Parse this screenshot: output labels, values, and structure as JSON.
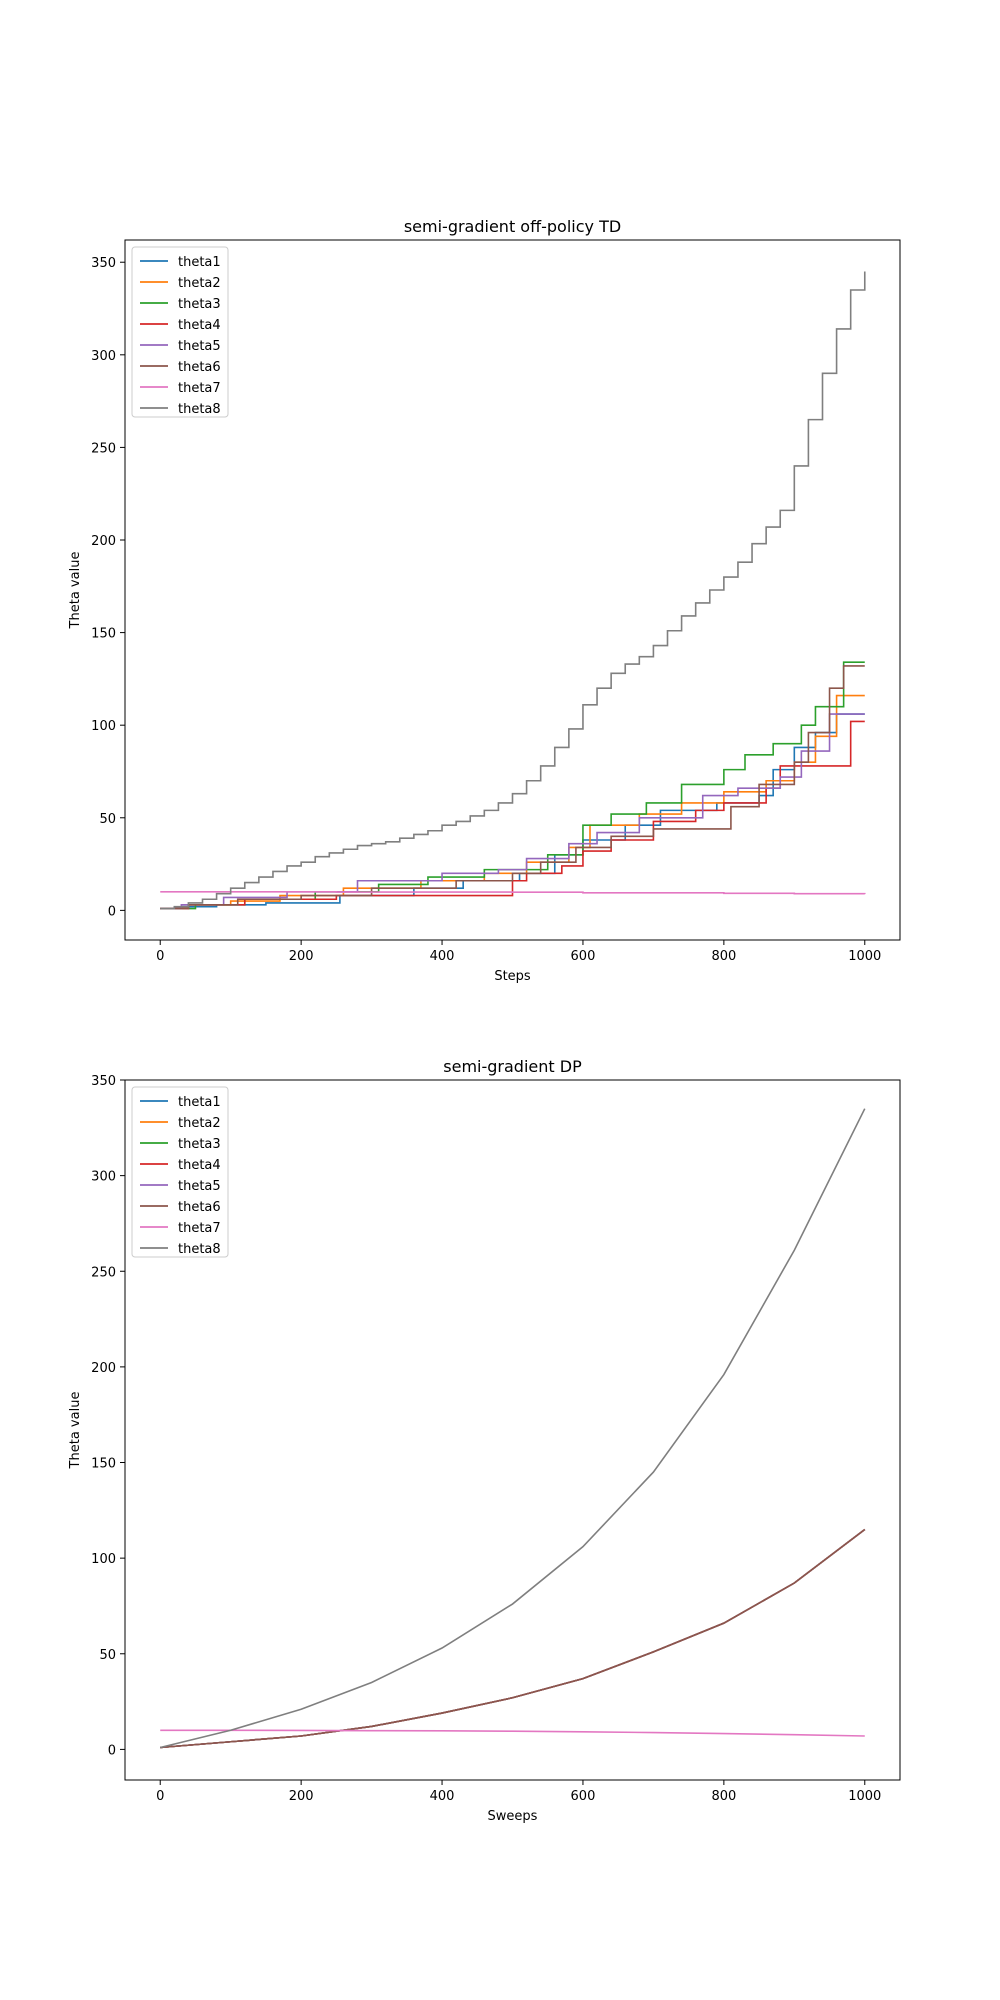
{
  "chart_data": [
    {
      "type": "line",
      "title": "semi-gradient off-policy TD",
      "xlabel": "Steps",
      "ylabel": "Theta value",
      "xlim": [
        -50,
        1050
      ],
      "ylim": [
        -16,
        362
      ],
      "xticks": [
        0,
        200,
        400,
        600,
        800,
        1000
      ],
      "yticks": [
        0,
        50,
        100,
        150,
        200,
        250,
        300,
        350
      ],
      "grid": false,
      "legend": "top-left",
      "step": true,
      "series": [
        {
          "name": "theta1",
          "color": "#1f77b4",
          "x": [
            0,
            30,
            80,
            150,
            255,
            360,
            430,
            510,
            560,
            600,
            660,
            710,
            790,
            850,
            870,
            900,
            930,
            960,
            1000
          ],
          "y": [
            1,
            2,
            3,
            4,
            8,
            12,
            16,
            20,
            30,
            38,
            46,
            54,
            58,
            62,
            76,
            88,
            96,
            106,
            106
          ]
        },
        {
          "name": "theta2",
          "color": "#ff7f0e",
          "x": [
            0,
            40,
            100,
            170,
            260,
            370,
            460,
            520,
            580,
            610,
            680,
            740,
            800,
            860,
            900,
            930,
            960,
            1000
          ],
          "y": [
            1,
            3,
            5,
            8,
            12,
            16,
            20,
            26,
            34,
            46,
            52,
            58,
            64,
            70,
            80,
            94,
            116,
            116
          ]
        },
        {
          "name": "theta3",
          "color": "#2ca02c",
          "x": [
            0,
            50,
            120,
            220,
            310,
            380,
            460,
            550,
            600,
            640,
            690,
            740,
            800,
            830,
            870,
            910,
            930,
            970,
            1000
          ],
          "y": [
            1,
            3,
            6,
            10,
            14,
            18,
            22,
            30,
            46,
            52,
            58,
            68,
            76,
            84,
            90,
            100,
            110,
            134,
            134
          ]
        },
        {
          "name": "theta4",
          "color": "#d62728",
          "x": [
            0,
            40,
            120,
            250,
            400,
            500,
            520,
            570,
            600,
            640,
            700,
            760,
            800,
            860,
            880,
            980,
            1000
          ],
          "y": [
            1,
            3,
            6,
            8,
            8,
            16,
            20,
            24,
            32,
            38,
            48,
            54,
            58,
            66,
            78,
            102,
            102
          ]
        },
        {
          "name": "theta5",
          "color": "#9467bd",
          "x": [
            0,
            30,
            90,
            180,
            280,
            400,
            480,
            520,
            580,
            620,
            680,
            770,
            820,
            880,
            910,
            950,
            1000
          ],
          "y": [
            1,
            3,
            7,
            10,
            16,
            20,
            22,
            28,
            36,
            42,
            50,
            62,
            66,
            72,
            86,
            106,
            106
          ]
        },
        {
          "name": "theta6",
          "color": "#8c564b",
          "x": [
            0,
            40,
            110,
            200,
            300,
            420,
            500,
            540,
            590,
            640,
            700,
            810,
            850,
            900,
            920,
            950,
            970,
            1000
          ],
          "y": [
            1,
            3,
            6,
            8,
            12,
            16,
            20,
            26,
            34,
            40,
            44,
            56,
            68,
            80,
            96,
            120,
            132,
            132
          ]
        },
        {
          "name": "theta7",
          "color": "#e377c2",
          "x": [
            0,
            250,
            500,
            600,
            800,
            900,
            1000
          ],
          "y": [
            10,
            9.9,
            9.8,
            9.5,
            9.2,
            9.0,
            8.8
          ]
        },
        {
          "name": "theta8",
          "color": "#7f7f7f",
          "x": [
            0,
            20,
            40,
            60,
            80,
            100,
            120,
            140,
            160,
            180,
            200,
            220,
            240,
            260,
            280,
            300,
            320,
            340,
            360,
            380,
            400,
            420,
            440,
            460,
            480,
            500,
            520,
            540,
            560,
            580,
            600,
            620,
            640,
            660,
            680,
            700,
            720,
            740,
            760,
            780,
            800,
            820,
            840,
            860,
            880,
            900,
            920,
            940,
            960,
            980,
            1000
          ],
          "y": [
            1,
            2,
            4,
            6,
            9,
            12,
            15,
            18,
            21,
            24,
            26,
            29,
            31,
            33,
            35,
            36,
            37,
            39,
            41,
            43,
            46,
            48,
            51,
            54,
            58,
            63,
            70,
            78,
            88,
            98,
            111,
            120,
            128,
            133,
            137,
            143,
            151,
            159,
            166,
            173,
            180,
            188,
            198,
            207,
            216,
            240,
            265,
            290,
            314,
            335,
            345
          ]
        }
      ]
    },
    {
      "type": "line",
      "title": "semi-gradient DP",
      "xlabel": "Sweeps",
      "ylabel": "Theta value",
      "xlim": [
        -50,
        1050
      ],
      "ylim": [
        -16,
        350
      ],
      "xticks": [
        0,
        200,
        400,
        600,
        800,
        1000
      ],
      "yticks": [
        0,
        50,
        100,
        150,
        200,
        250,
        300,
        350
      ],
      "grid": false,
      "legend": "top-left",
      "step": false,
      "series": [
        {
          "name": "theta1",
          "color": "#1f77b4",
          "x": [
            0,
            100,
            200,
            300,
            400,
            500,
            600,
            700,
            800,
            900,
            1000
          ],
          "y": [
            1,
            4,
            7,
            12,
            19,
            27,
            37,
            51,
            66,
            87,
            115
          ]
        },
        {
          "name": "theta2",
          "color": "#ff7f0e",
          "x": [
            0,
            100,
            200,
            300,
            400,
            500,
            600,
            700,
            800,
            900,
            1000
          ],
          "y": [
            1,
            4,
            7,
            12,
            19,
            27,
            37,
            51,
            66,
            87,
            115
          ]
        },
        {
          "name": "theta3",
          "color": "#2ca02c",
          "x": [
            0,
            100,
            200,
            300,
            400,
            500,
            600,
            700,
            800,
            900,
            1000
          ],
          "y": [
            1,
            4,
            7,
            12,
            19,
            27,
            37,
            51,
            66,
            87,
            115
          ]
        },
        {
          "name": "theta4",
          "color": "#d62728",
          "x": [
            0,
            100,
            200,
            300,
            400,
            500,
            600,
            700,
            800,
            900,
            1000
          ],
          "y": [
            1,
            4,
            7,
            12,
            19,
            27,
            37,
            51,
            66,
            87,
            115
          ]
        },
        {
          "name": "theta5",
          "color": "#9467bd",
          "x": [
            0,
            100,
            200,
            300,
            400,
            500,
            600,
            700,
            800,
            900,
            1000
          ],
          "y": [
            1,
            4,
            7,
            12,
            19,
            27,
            37,
            51,
            66,
            87,
            115
          ]
        },
        {
          "name": "theta6",
          "color": "#8c564b",
          "x": [
            0,
            100,
            200,
            300,
            400,
            500,
            600,
            700,
            800,
            900,
            1000
          ],
          "y": [
            1,
            4,
            7,
            12,
            19,
            27,
            37,
            51,
            66,
            87,
            115
          ]
        },
        {
          "name": "theta7",
          "color": "#e377c2",
          "x": [
            0,
            100,
            200,
            300,
            400,
            500,
            600,
            700,
            800,
            900,
            1000
          ],
          "y": [
            10,
            10,
            9.9,
            9.8,
            9.7,
            9.5,
            9.2,
            8.8,
            8.3,
            7.7,
            7
          ]
        },
        {
          "name": "theta8",
          "color": "#7f7f7f",
          "x": [
            0,
            100,
            200,
            300,
            400,
            500,
            600,
            700,
            800,
            900,
            1000
          ],
          "y": [
            1,
            10,
            21,
            35,
            53,
            76,
            106,
            145,
            196,
            261,
            335
          ]
        }
      ]
    }
  ]
}
